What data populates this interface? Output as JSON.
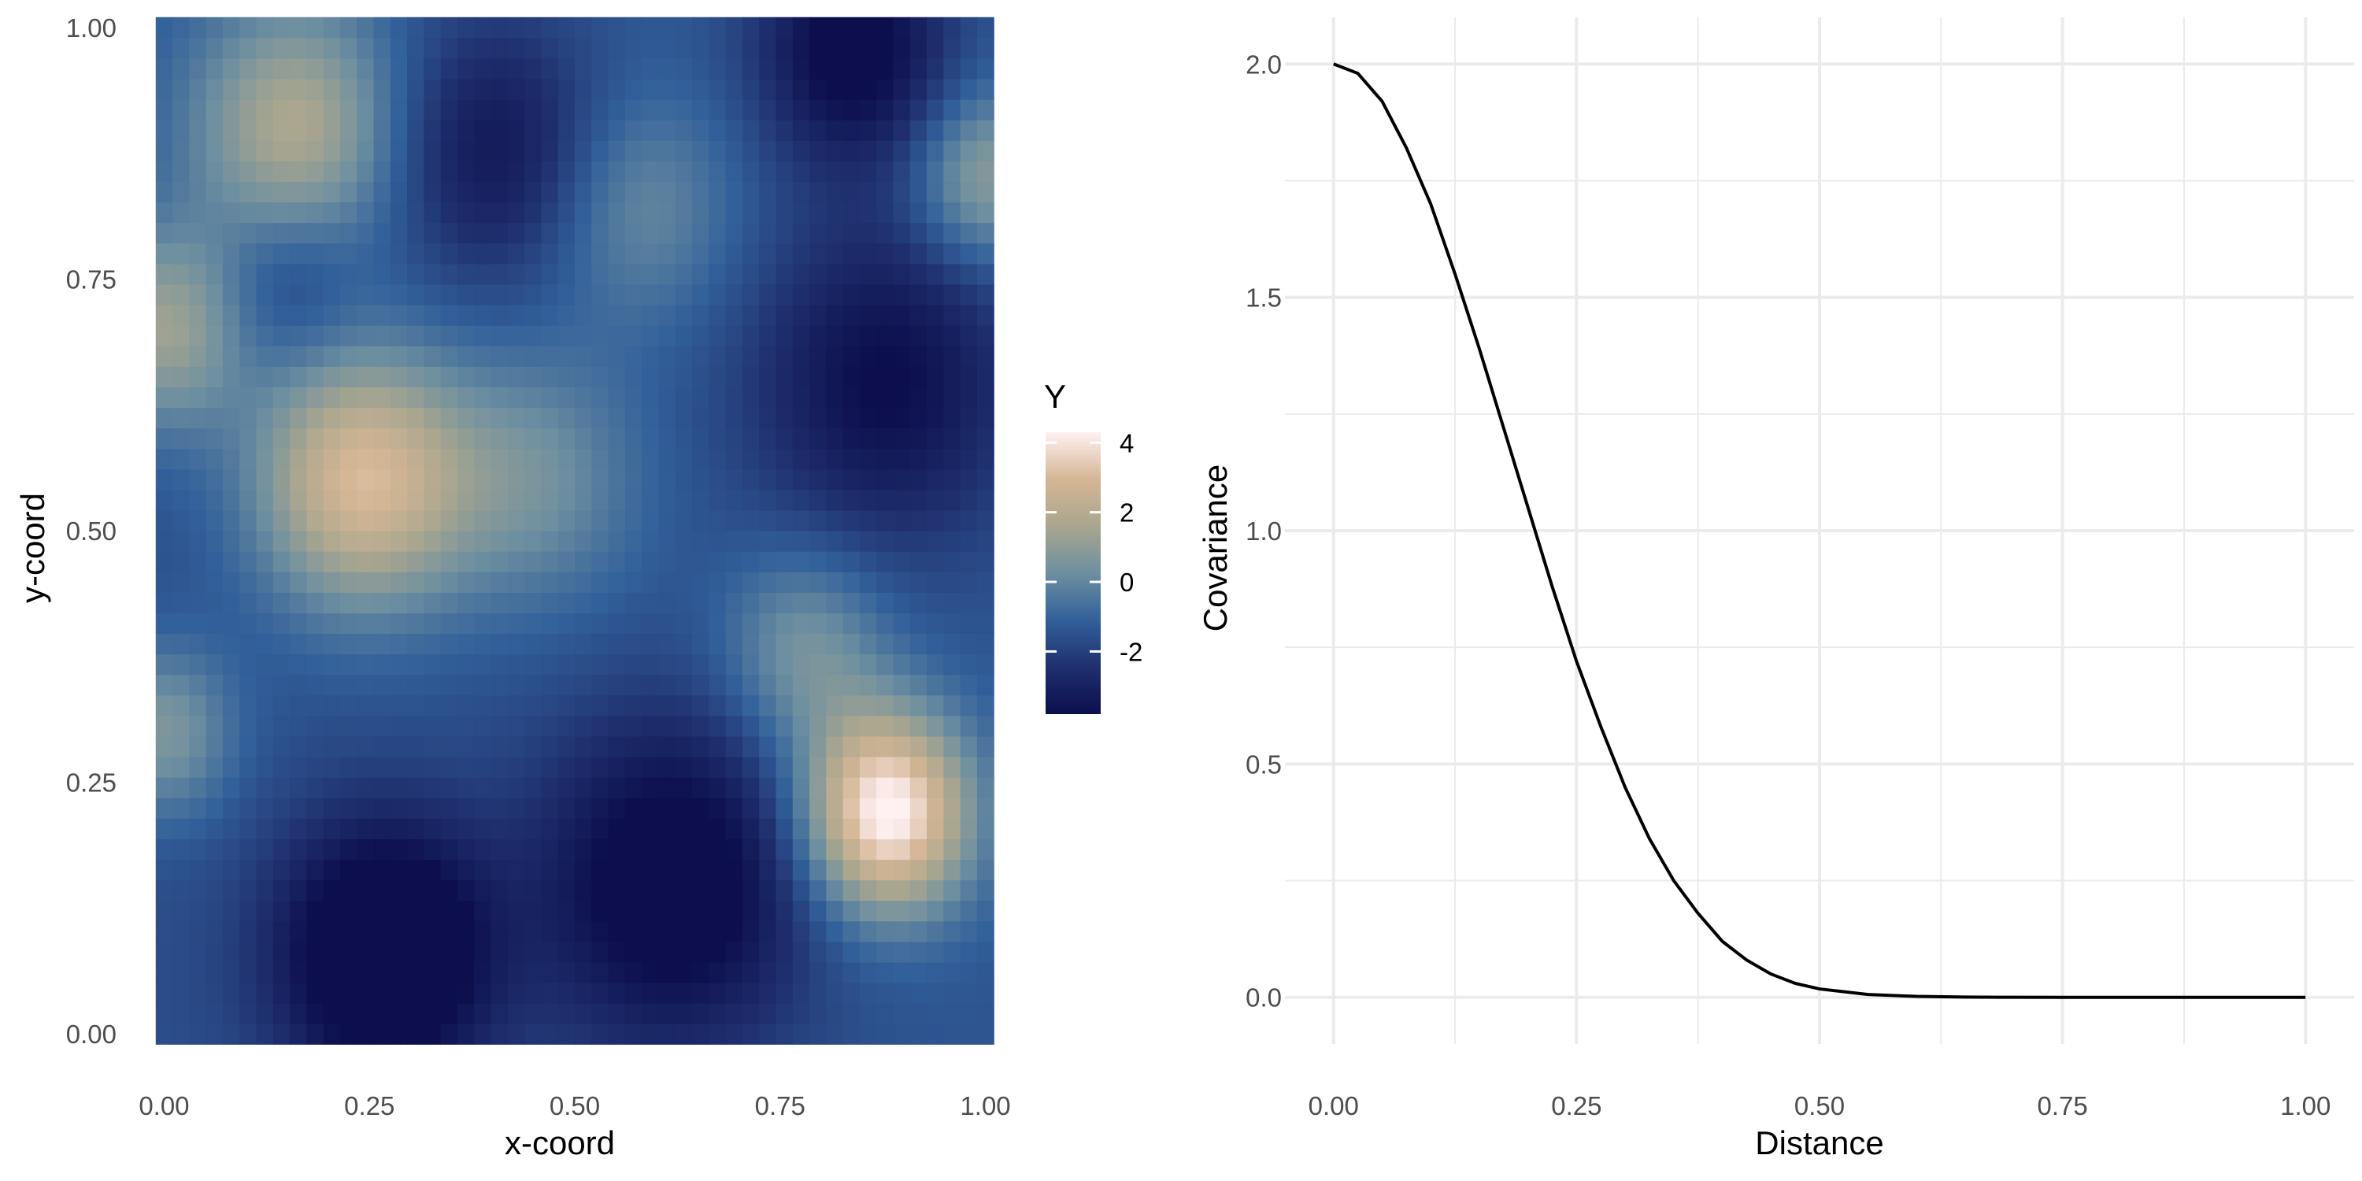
{
  "chart_data": [
    {
      "type": "heatmap",
      "xlabel": "x-coord",
      "ylabel": "y-coord",
      "xlim": [
        -0.01,
        1.01
      ],
      "ylim": [
        -0.01,
        1.01
      ],
      "x_ticks": [
        0,
        0.25,
        0.5,
        0.75,
        1
      ],
      "x_tick_labels": [
        "0.00",
        "0.25",
        "0.50",
        "0.75",
        "1.00"
      ],
      "y_ticks": [
        0,
        0.25,
        0.5,
        0.75,
        1
      ],
      "y_tick_labels": [
        "0.00",
        "0.25",
        "0.50",
        "0.75",
        "1.00"
      ],
      "grid": true,
      "grid_resolution": 50,
      "legend": {
        "title": "Y",
        "position": "right",
        "range": [
          -3.8,
          4.3
        ],
        "ticks": [
          4,
          2,
          0,
          -2
        ],
        "tick_labels": [
          "4",
          "2",
          "0",
          "-2"
        ],
        "colors": [
          "#0d0f4d",
          "#1f2f6e",
          "#32609a",
          "#6d8fa0",
          "#a9a68f",
          "#d4b694",
          "#fff0f2"
        ]
      },
      "field_features": [
        {
          "x": 0.0,
          "y": 0.0,
          "value": -1.6,
          "sigma": 2.0
        },
        {
          "x": 0.88,
          "y": 0.22,
          "value": 6.0,
          "sigma": 0.07
        },
        {
          "x": 0.27,
          "y": 0.08,
          "value": -4.0,
          "sigma": 0.09
        },
        {
          "x": 0.62,
          "y": 0.15,
          "value": -3.2,
          "sigma": 0.11
        },
        {
          "x": 0.84,
          "y": 0.98,
          "value": -3.0,
          "sigma": 0.08
        },
        {
          "x": 0.88,
          "y": 0.65,
          "value": -2.5,
          "sigma": 0.11
        },
        {
          "x": 0.24,
          "y": 0.55,
          "value": 4.5,
          "sigma": 0.09
        },
        {
          "x": 0.16,
          "y": 0.9,
          "value": 3.2,
          "sigma": 0.09
        },
        {
          "x": 0.0,
          "y": 0.7,
          "value": 2.8,
          "sigma": 0.07
        },
        {
          "x": 0.0,
          "y": 0.3,
          "value": 2.2,
          "sigma": 0.06
        },
        {
          "x": 0.45,
          "y": 0.55,
          "value": 1.8,
          "sigma": 0.09
        },
        {
          "x": 0.58,
          "y": 0.82,
          "value": 1.5,
          "sigma": 0.08
        },
        {
          "x": 0.78,
          "y": 0.38,
          "value": 2.0,
          "sigma": 0.07
        },
        {
          "x": 1.0,
          "y": 0.85,
          "value": 2.4,
          "sigma": 0.06
        },
        {
          "x": 0.4,
          "y": 0.88,
          "value": -2.0,
          "sigma": 0.09
        },
        {
          "x": 0.15,
          "y": 0.75,
          "value": -1.0,
          "sigma": 0.06
        }
      ]
    },
    {
      "type": "line",
      "xlabel": "Distance",
      "ylabel": "Covariance",
      "xlim": [
        -0.05,
        1.05
      ],
      "ylim": [
        -0.1,
        2.1
      ],
      "x_ticks": [
        0,
        0.25,
        0.5,
        0.75,
        1
      ],
      "x_tick_labels": [
        "0.00",
        "0.25",
        "0.50",
        "0.75",
        "1.00"
      ],
      "y_ticks": [
        0,
        0.5,
        1,
        1.5,
        2
      ],
      "y_tick_labels": [
        "0.0",
        "0.5",
        "1.0",
        "1.5",
        "2.0"
      ],
      "grid": true,
      "series": [
        {
          "color": "#000000",
          "x": [
            0,
            0.025,
            0.05,
            0.075,
            0.1,
            0.125,
            0.15,
            0.175,
            0.2,
            0.225,
            0.25,
            0.275,
            0.3,
            0.325,
            0.35,
            0.375,
            0.4,
            0.425,
            0.45,
            0.475,
            0.5,
            0.55,
            0.6,
            0.65,
            0.7,
            0.75,
            0.8,
            0.85,
            0.9,
            0.95,
            1.0
          ],
          "y": [
            2.0,
            1.98,
            1.92,
            1.82,
            1.7,
            1.55,
            1.39,
            1.22,
            1.05,
            0.88,
            0.72,
            0.58,
            0.45,
            0.34,
            0.25,
            0.18,
            0.12,
            0.08,
            0.05,
            0.03,
            0.018,
            0.006,
            0.002,
            0.0005,
            0.0001,
            0.0,
            0.0,
            0.0,
            0.0,
            0.0,
            0.0
          ]
        }
      ]
    }
  ]
}
